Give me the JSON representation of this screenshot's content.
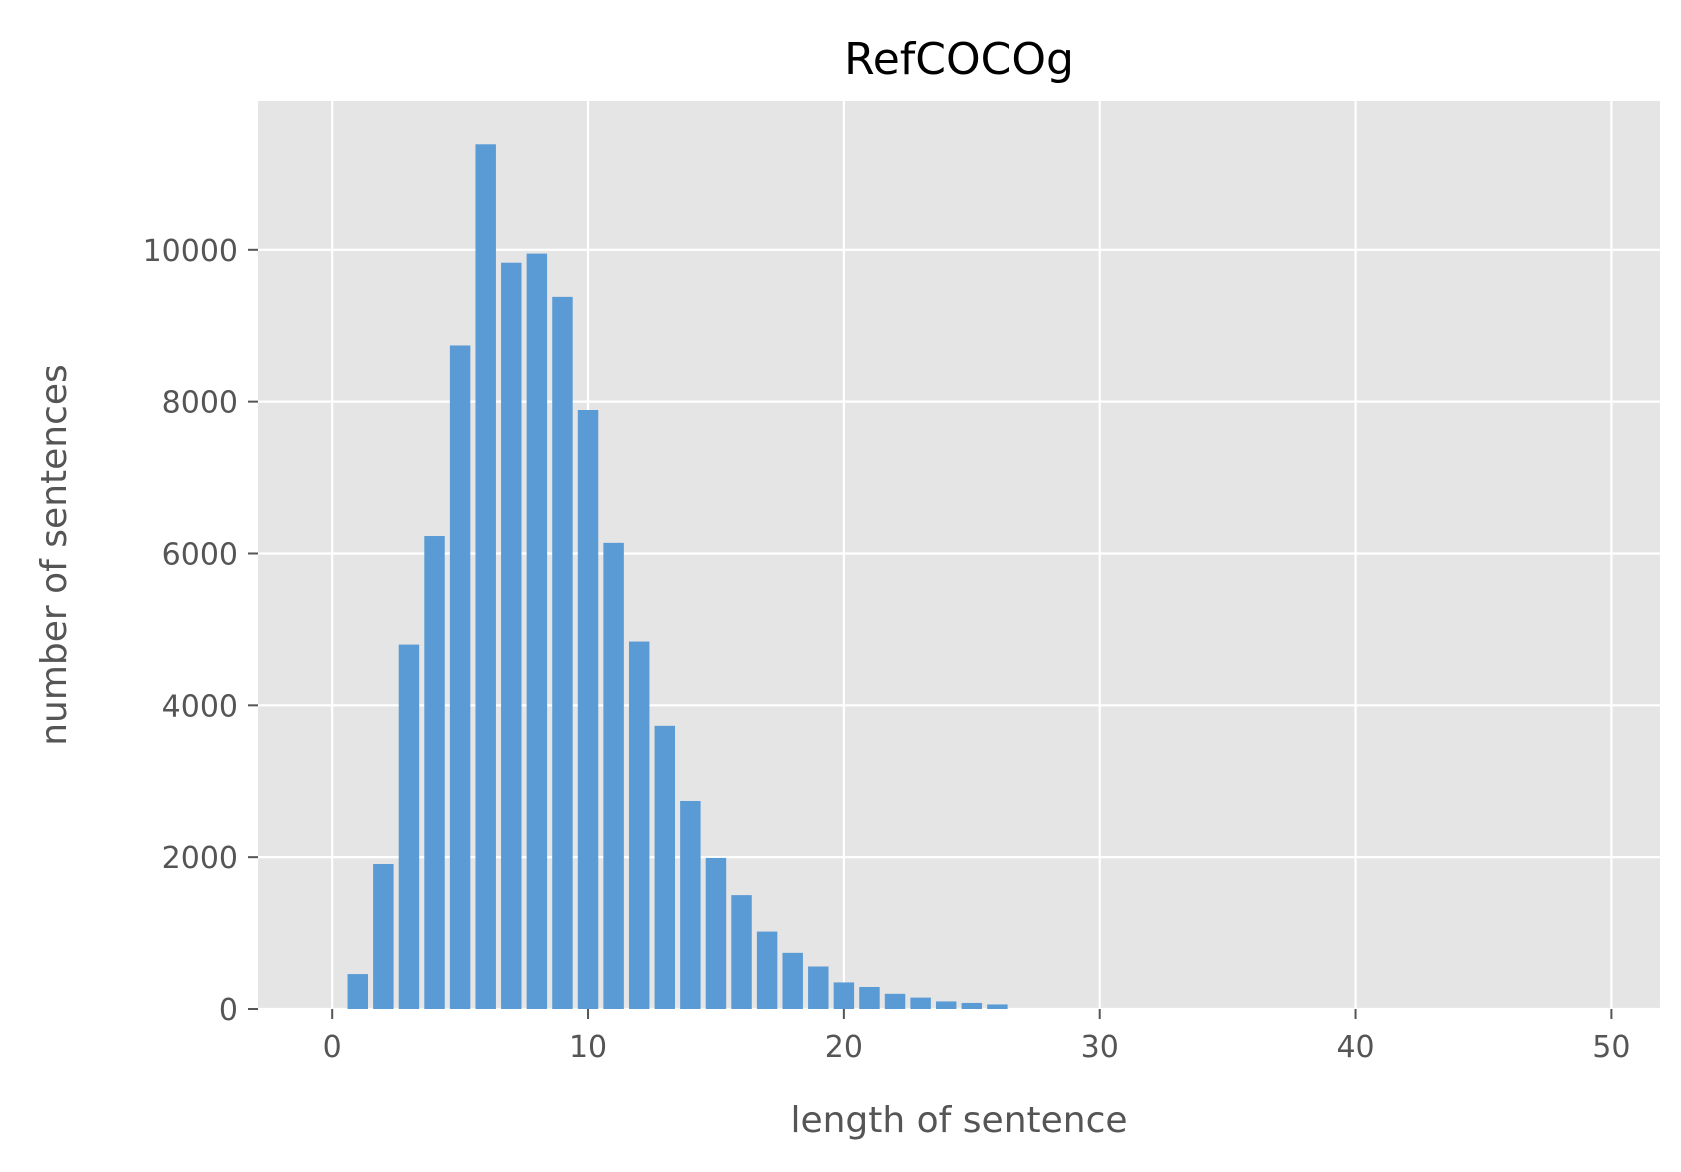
{
  "chart_data": {
    "type": "bar",
    "title": "RefCOCOg",
    "xlabel": "length of sentence",
    "ylabel": "number of sentences",
    "x": [
      1,
      2,
      3,
      4,
      5,
      6,
      7,
      8,
      9,
      10,
      11,
      12,
      13,
      14,
      15,
      16,
      17,
      18,
      19,
      20,
      21,
      22,
      23,
      24,
      25,
      26
    ],
    "values": [
      460,
      1910,
      4800,
      6230,
      8740,
      11390,
      9830,
      9950,
      9380,
      7890,
      6140,
      4840,
      3730,
      2740,
      1990,
      1500,
      1020,
      740,
      560,
      350,
      290,
      200,
      150,
      100,
      80,
      60
    ],
    "xlim": [
      -2.9,
      51.9
    ],
    "ylim": [
      0,
      11960
    ],
    "xticks": [
      0,
      10,
      20,
      30,
      40,
      50
    ],
    "yticks": [
      0,
      2000,
      4000,
      6000,
      8000,
      10000
    ],
    "bar_width": 0.8,
    "grid": true,
    "style": "ggplot",
    "colors": {
      "bar": "#5b9bd5",
      "plot_background": "#e5e5e5",
      "grid": "#ffffff",
      "tick_text": "#555555",
      "title_text": "#000000"
    }
  }
}
